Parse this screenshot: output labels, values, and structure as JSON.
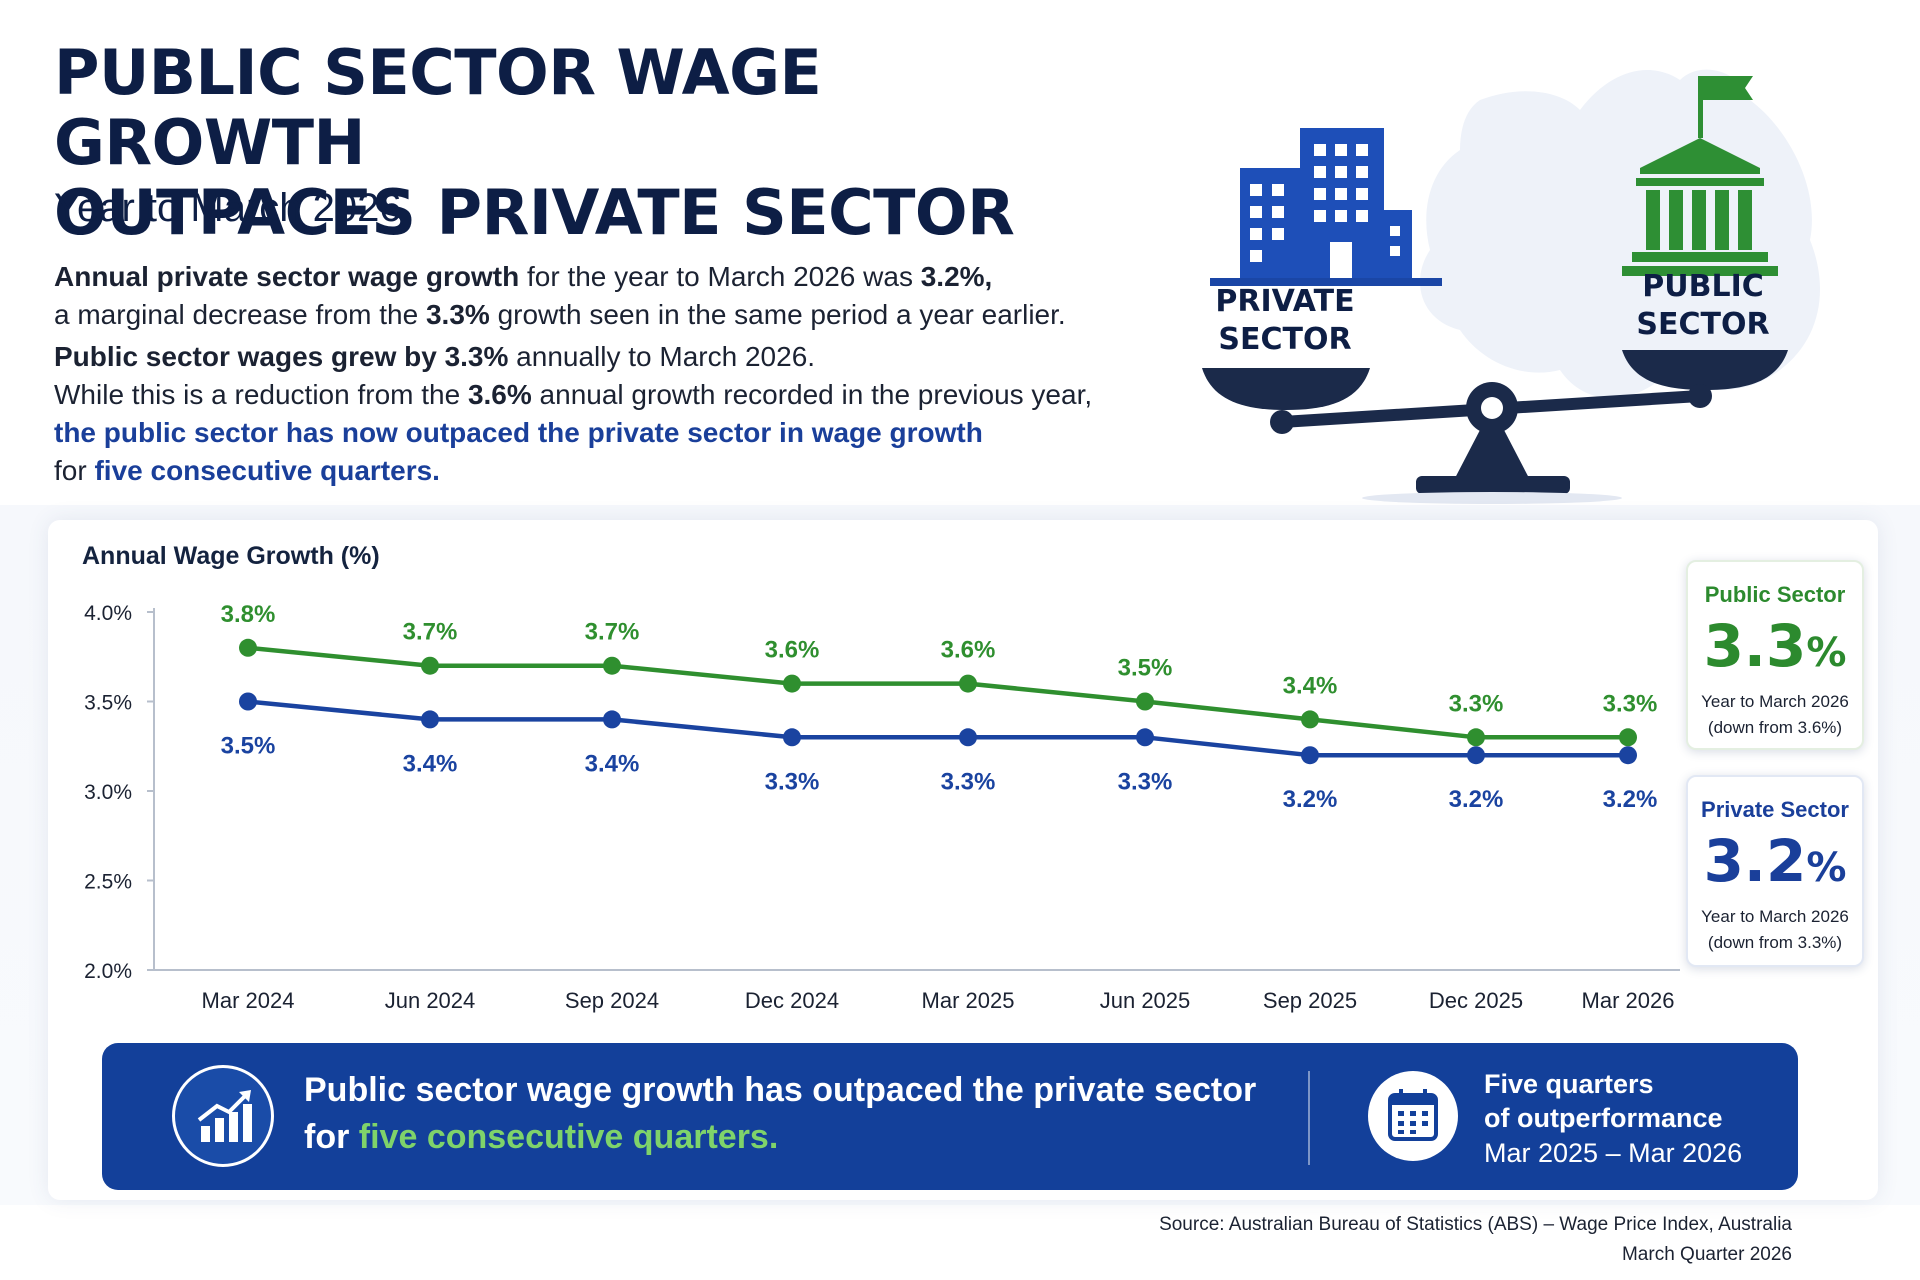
{
  "header": {
    "title_line1": "PUBLIC SECTOR WAGE GROWTH",
    "title_line2": "OUTPACES PRIVATE SECTOR",
    "subtitle": "Year to March 2026"
  },
  "intro": {
    "p1_a": "Annual private sector wage growth",
    "p1_b": " for the year to March 2026 was ",
    "p1_c": "3.2%,",
    "p2_a": "a marginal decrease from the ",
    "p2_b": "3.3%",
    "p2_c": " growth seen in the same period a year earlier.",
    "p3_a": "Public sector wages grew by 3.3%",
    "p3_b": " annually to March 2026.",
    "p4_a": "While this is a reduction from the ",
    "p4_b": "3.6%",
    "p4_c": " annual growth recorded in the previous year,",
    "p5": "the public sector has now outpaced the private sector in wage growth",
    "p6_a": "for ",
    "p6_b": "five consecutive quarters."
  },
  "hero": {
    "private_line1": "PRIVATE",
    "private_line2": "SECTOR",
    "public_line1": "PUBLIC",
    "public_line2": "SECTOR",
    "icons": [
      "office-building-icon",
      "government-building-icon",
      "flag-icon",
      "balance-scale-icon",
      "australia-map-icon"
    ]
  },
  "chart_data": {
    "type": "line",
    "title": "Annual Wage Growth (%)",
    "xlabel": "",
    "ylabel": "",
    "categories": [
      "Mar 2024",
      "Jun 2024",
      "Sep 2024",
      "Dec 2024",
      "Mar 2025",
      "Jun 2025",
      "Sep 2025",
      "Dec 2025",
      "Mar 2026"
    ],
    "yticks": [
      "4.0%",
      "3.5%",
      "3.0%",
      "2.5%",
      "2.0%"
    ],
    "ylim": [
      2.0,
      4.0
    ],
    "grid": false,
    "series": [
      {
        "name": "Public Sector",
        "color": "#2f8f2f",
        "values": [
          3.8,
          3.7,
          3.7,
          3.6,
          3.6,
          3.5,
          3.4,
          3.3,
          3.3
        ],
        "labels": [
          "3.8%",
          "3.7%",
          "3.7%",
          "3.6%",
          "3.6%",
          "3.5%",
          "3.4%",
          "3.3%",
          "3.3%"
        ]
      },
      {
        "name": "Private Sector",
        "color": "#1a43a0",
        "values": [
          3.5,
          3.4,
          3.4,
          3.3,
          3.3,
          3.3,
          3.2,
          3.2,
          3.2
        ],
        "labels": [
          "3.5%",
          "3.4%",
          "3.4%",
          "3.3%",
          "3.3%",
          "3.3%",
          "3.2%",
          "3.2%",
          "3.2%"
        ]
      }
    ]
  },
  "cards": {
    "public": {
      "name": "Public Sector",
      "value": "3.3",
      "unit": "%",
      "note1": "Year to March 2026",
      "note2": "(down from 3.6%)"
    },
    "private": {
      "name": "Private Sector",
      "value": "3.2",
      "unit": "%",
      "note1": "Year to March 2026",
      "note2": "(down from 3.3%)"
    }
  },
  "banner": {
    "main_line1": "Public sector wage growth has outpaced the private sector",
    "main_line2_a": "for ",
    "main_line2_b": "five consecutive quarters.",
    "side_line1": "Five quarters",
    "side_line2": "of outperformance",
    "side_range": "Mar 2025 – Mar 2026",
    "icons": [
      "growth-chart-icon",
      "calendar-icon"
    ]
  },
  "source": {
    "line1": "Source: Australian Bureau of Statistics (ABS) – Wage Price Index, Australia",
    "line2": "March Quarter 2026"
  },
  "colors": {
    "navy": "#0d1e45",
    "public_green": "#2f8f2f",
    "private_blue": "#1a43a0",
    "banner_blue": "#13409a",
    "banner_highlight": "#7fd36a"
  }
}
